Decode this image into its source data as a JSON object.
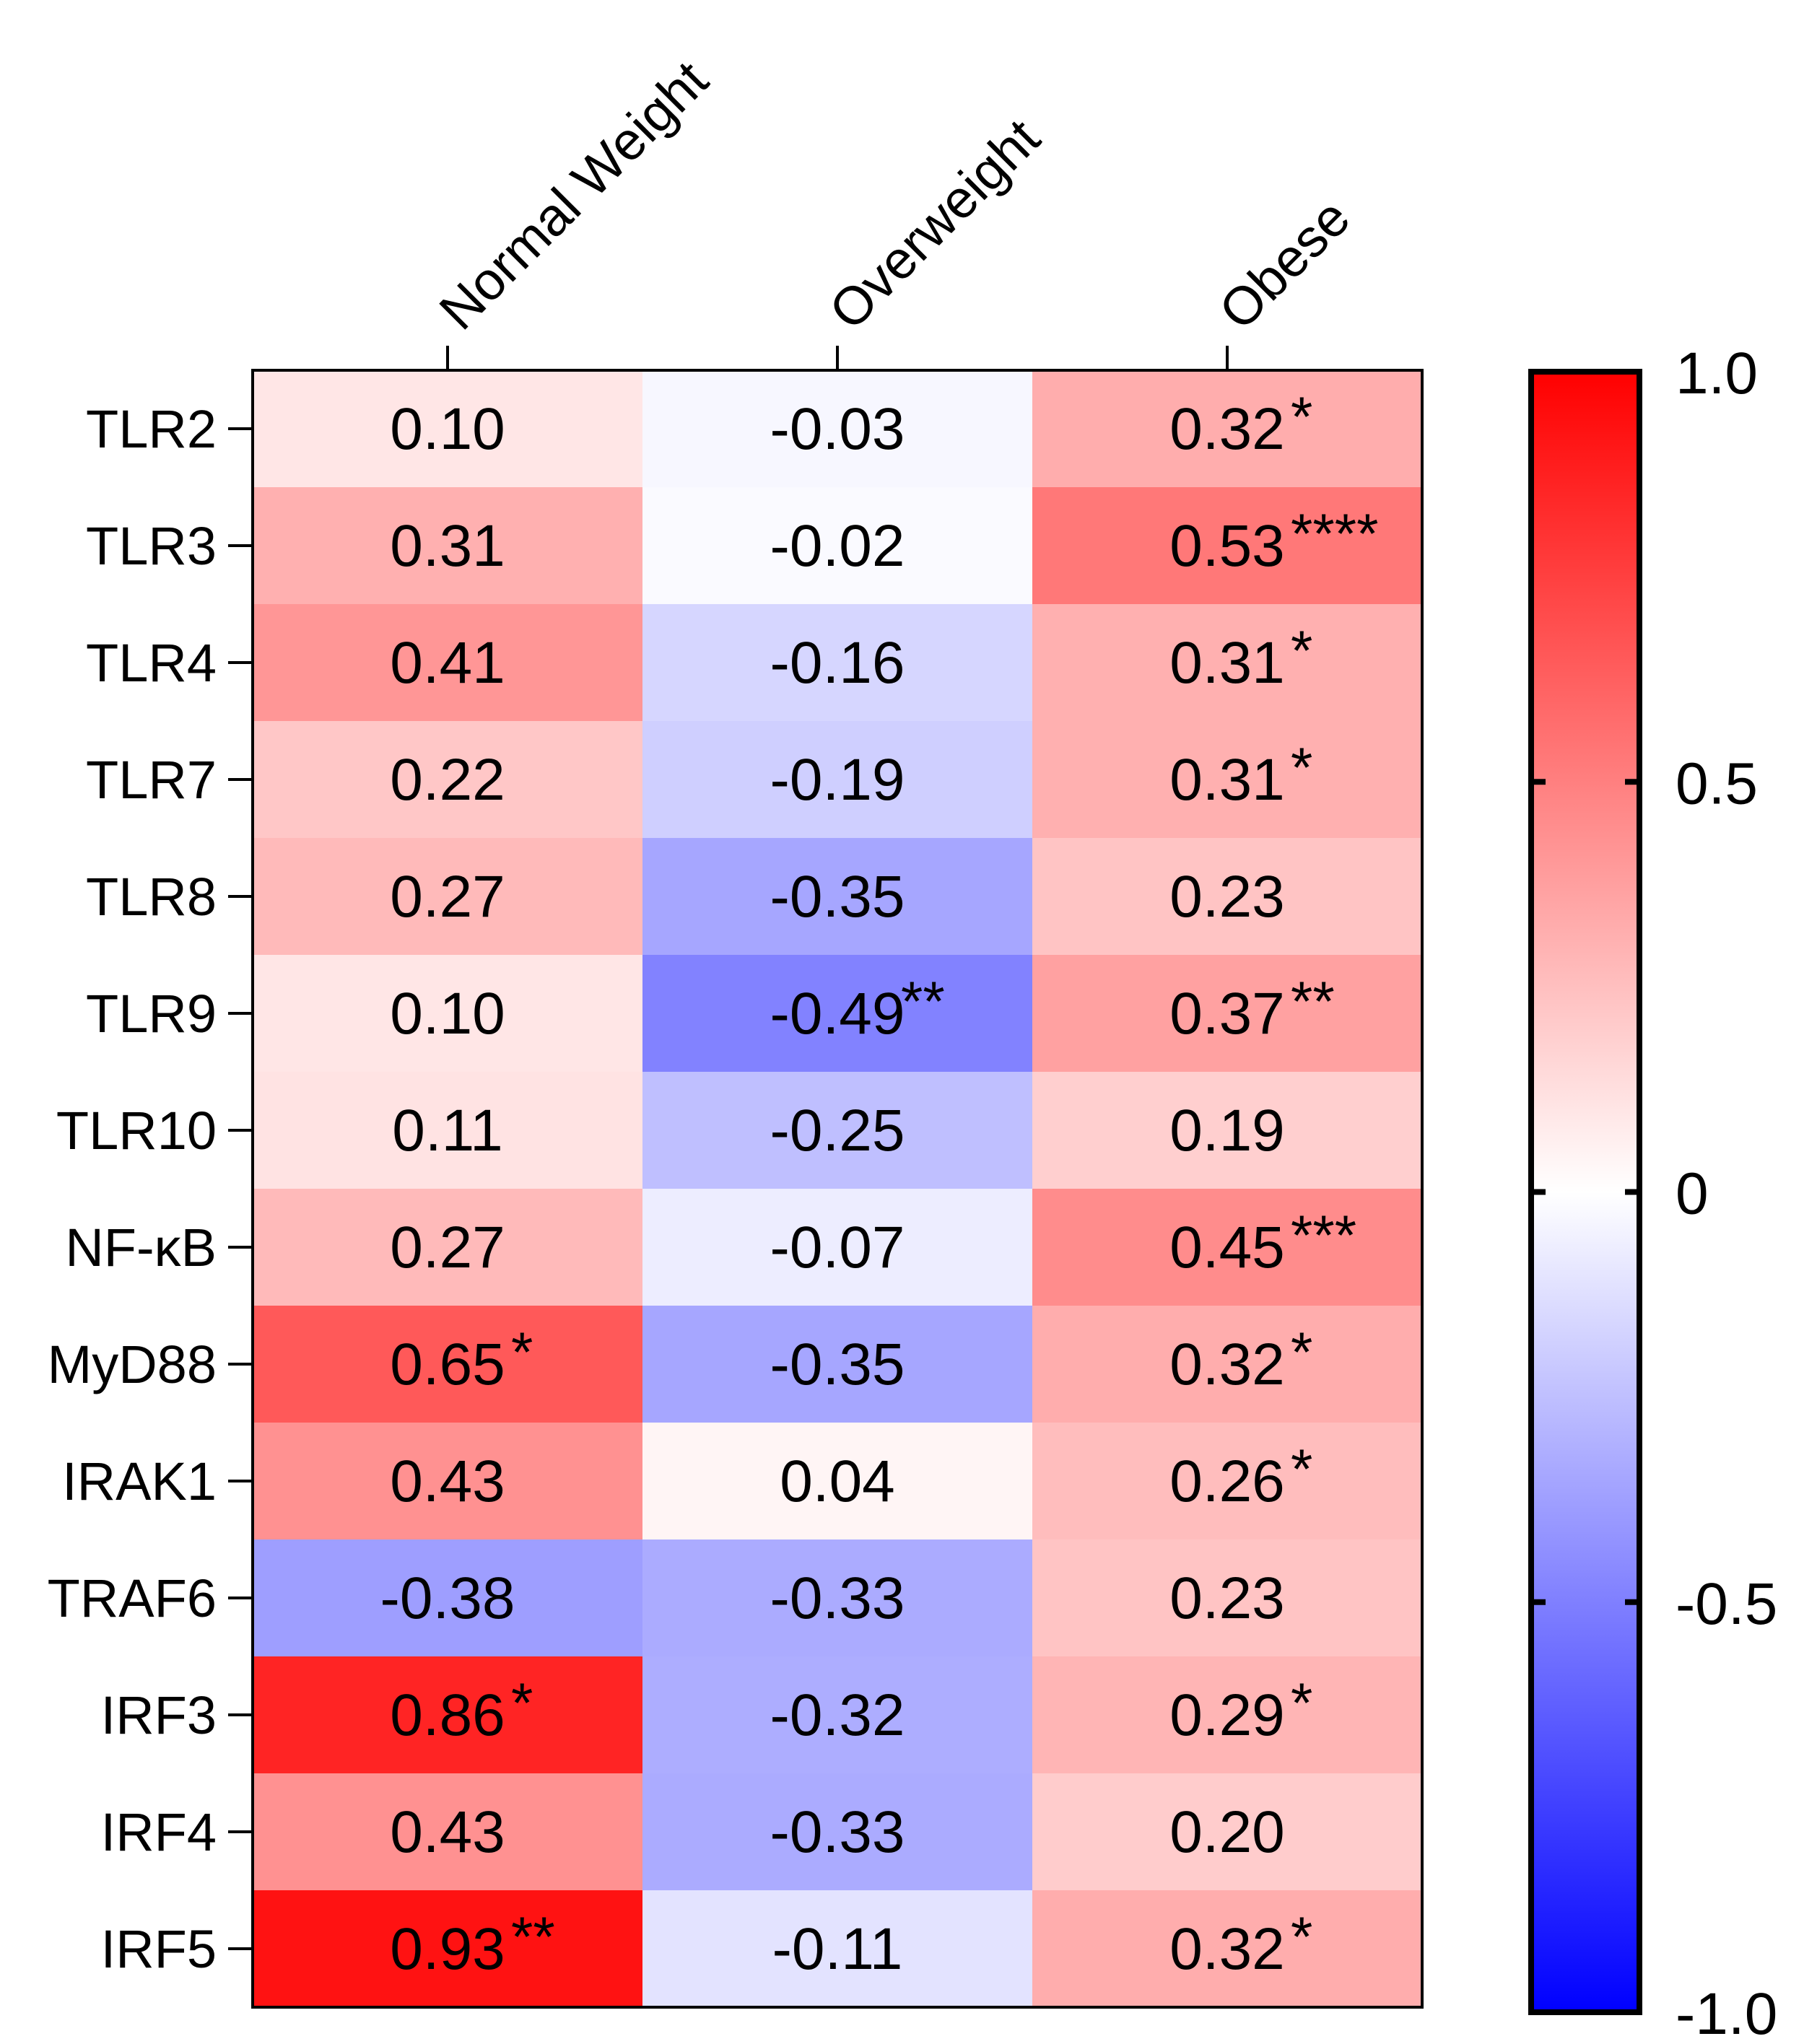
{
  "chart_data": {
    "type": "heatmap",
    "columns": [
      "Normal Weight",
      "Overweight",
      "Obese"
    ],
    "rows": [
      "TLR2",
      "TLR3",
      "TLR4",
      "TLR7",
      "TLR8",
      "TLR9",
      "TLR10",
      "NF-κB",
      "MyD88",
      "IRAK1",
      "TRAF6",
      "IRF3",
      "IRF4",
      "IRF5"
    ],
    "values": [
      [
        0.1,
        -0.03,
        0.32
      ],
      [
        0.31,
        -0.02,
        0.53
      ],
      [
        0.41,
        -0.16,
        0.31
      ],
      [
        0.22,
        -0.19,
        0.31
      ],
      [
        0.27,
        -0.35,
        0.23
      ],
      [
        0.1,
        -0.49,
        0.37
      ],
      [
        0.11,
        -0.25,
        0.19
      ],
      [
        0.27,
        -0.07,
        0.45
      ],
      [
        0.65,
        -0.35,
        0.32
      ],
      [
        0.43,
        0.04,
        0.26
      ],
      [
        -0.38,
        -0.33,
        0.23
      ],
      [
        0.86,
        -0.32,
        0.29
      ],
      [
        0.43,
        -0.33,
        0.2
      ],
      [
        0.93,
        -0.11,
        0.32
      ]
    ],
    "labels": [
      [
        "0.10",
        "-0.03",
        "0.32"
      ],
      [
        "0.31",
        "-0.02",
        "0.53"
      ],
      [
        "0.41",
        "-0.16",
        "0.31"
      ],
      [
        "0.22",
        "-0.19",
        "0.31"
      ],
      [
        "0.27",
        "-0.35",
        "0.23"
      ],
      [
        "0.10",
        "-0.49",
        "0.37"
      ],
      [
        "0.11",
        "-0.25",
        "0.19"
      ],
      [
        "0.27",
        "-0.07",
        "0.45"
      ],
      [
        "0.65",
        "-0.35",
        "0.32"
      ],
      [
        "0.43",
        "0.04",
        "0.26"
      ],
      [
        "-0.38",
        "-0.33",
        "0.23"
      ],
      [
        "0.86",
        "-0.32",
        "0.29"
      ],
      [
        "0.43",
        "-0.33",
        "0.20"
      ],
      [
        "0.93",
        "-0.11",
        "0.32"
      ]
    ],
    "significance": [
      [
        "",
        "",
        "*"
      ],
      [
        "",
        "",
        "****"
      ],
      [
        "",
        "",
        "*"
      ],
      [
        "",
        "",
        "*"
      ],
      [
        "",
        "",
        ""
      ],
      [
        "",
        "**",
        "**"
      ],
      [
        "",
        "",
        ""
      ],
      [
        "",
        "",
        "***"
      ],
      [
        "*",
        "",
        "*"
      ],
      [
        "",
        "",
        "*"
      ],
      [
        "",
        "",
        ""
      ],
      [
        "*",
        "",
        "*"
      ],
      [
        "",
        "",
        ""
      ],
      [
        "**",
        "",
        "*"
      ]
    ],
    "colorscale": {
      "min": -1.0,
      "mid": 0,
      "max": 1.0,
      "min_color": "#0000ff",
      "mid_color": "#ffffff",
      "max_color": "#ff0000",
      "ticks": [
        1.0,
        0.5,
        0,
        -0.5,
        -1.0
      ],
      "tick_labels": [
        "1.0",
        "0.5",
        "0",
        "-0.5",
        "-1.0"
      ]
    }
  }
}
